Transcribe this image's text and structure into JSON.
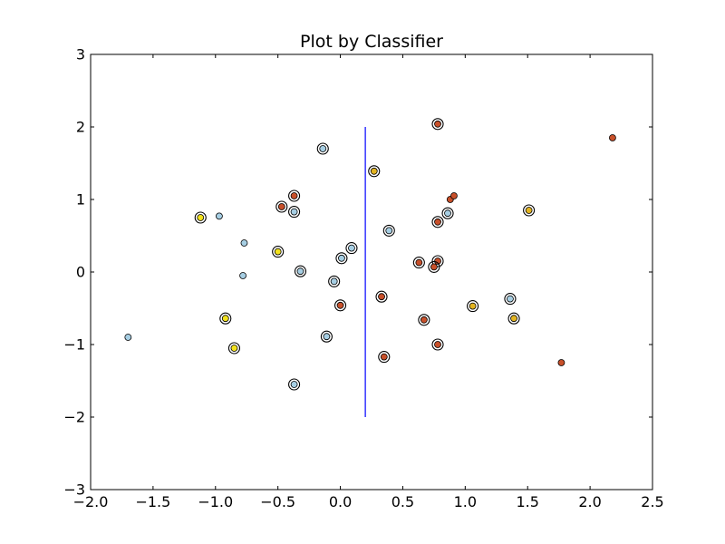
{
  "chart_data": {
    "type": "scatter",
    "title": "Plot by Classifier",
    "xlabel": "",
    "ylabel": "",
    "xlim": [
      -2.0,
      2.5
    ],
    "ylim": [
      -3,
      3
    ],
    "xticks": [
      -2.0,
      -1.5,
      -1.0,
      -0.5,
      0.0,
      0.5,
      1.0,
      1.5,
      2.0,
      2.5
    ],
    "xtick_labels": [
      "−2.0",
      "−1.5",
      "−1.0",
      "−0.5",
      "0.0",
      "0.5",
      "1.0",
      "1.5",
      "2.0",
      "2.5"
    ],
    "yticks": [
      -3,
      -2,
      -1,
      0,
      1,
      2,
      3
    ],
    "ytick_labels": [
      "−3",
      "−2",
      "−1",
      "0",
      "1",
      "2",
      "3"
    ],
    "grid": false,
    "legend": "none",
    "colors": {
      "class_light_blue": "#a6cee3",
      "class_orange_red": "#c8502a",
      "class_yellow": "#f3e21c",
      "class_gold": "#e3b420",
      "divider_line": "#0000ff",
      "ring": "#000000"
    },
    "divider": {
      "x": 0.2,
      "y_from": -2.0,
      "y_to": 2.0
    },
    "points": [
      {
        "x": -1.7,
        "y": -0.9,
        "cls": "light_blue",
        "ring": false
      },
      {
        "x": -0.97,
        "y": 0.77,
        "cls": "light_blue",
        "ring": false
      },
      {
        "x": -0.77,
        "y": 0.4,
        "cls": "light_blue",
        "ring": false
      },
      {
        "x": -0.78,
        "y": -0.05,
        "cls": "light_blue",
        "ring": false
      },
      {
        "x": -0.14,
        "y": 1.7,
        "cls": "light_blue",
        "ring": true
      },
      {
        "x": -0.37,
        "y": 0.83,
        "cls": "light_blue",
        "ring": true
      },
      {
        "x": -0.32,
        "y": 0.01,
        "cls": "light_blue",
        "ring": true
      },
      {
        "x": -0.05,
        "y": -0.13,
        "cls": "light_blue",
        "ring": true
      },
      {
        "x": 0.01,
        "y": 0.19,
        "cls": "light_blue",
        "ring": true
      },
      {
        "x": 0.09,
        "y": 0.33,
        "cls": "light_blue",
        "ring": true
      },
      {
        "x": -0.11,
        "y": -0.89,
        "cls": "light_blue",
        "ring": true
      },
      {
        "x": -0.37,
        "y": -1.55,
        "cls": "light_blue",
        "ring": true
      },
      {
        "x": 0.39,
        "y": 0.57,
        "cls": "light_blue",
        "ring": true
      },
      {
        "x": 0.86,
        "y": 0.81,
        "cls": "light_blue",
        "ring": true
      },
      {
        "x": 1.36,
        "y": -0.37,
        "cls": "light_blue",
        "ring": true
      },
      {
        "x": 0.78,
        "y": 2.04,
        "cls": "orange_red",
        "ring": true
      },
      {
        "x": 2.18,
        "y": 1.85,
        "cls": "orange_red",
        "ring": false
      },
      {
        "x": 0.88,
        "y": 1.0,
        "cls": "orange_red",
        "ring": false
      },
      {
        "x": 0.91,
        "y": 1.05,
        "cls": "orange_red",
        "ring": false
      },
      {
        "x": 0.78,
        "y": 0.69,
        "cls": "orange_red",
        "ring": true
      },
      {
        "x": -0.37,
        "y": 1.05,
        "cls": "orange_red",
        "ring": true
      },
      {
        "x": -0.47,
        "y": 0.9,
        "cls": "orange_red",
        "ring": true
      },
      {
        "x": 0.63,
        "y": 0.13,
        "cls": "orange_red",
        "ring": true
      },
      {
        "x": 0.78,
        "y": 0.15,
        "cls": "orange_red",
        "ring": true
      },
      {
        "x": 0.75,
        "y": 0.07,
        "cls": "orange_red",
        "ring": true
      },
      {
        "x": 0.33,
        "y": -0.34,
        "cls": "orange_red",
        "ring": true
      },
      {
        "x": 0.0,
        "y": -0.46,
        "cls": "orange_red",
        "ring": true
      },
      {
        "x": 0.67,
        "y": -0.66,
        "cls": "orange_red",
        "ring": true
      },
      {
        "x": 0.78,
        "y": -1.0,
        "cls": "orange_red",
        "ring": true
      },
      {
        "x": 0.35,
        "y": -1.17,
        "cls": "orange_red",
        "ring": true
      },
      {
        "x": 1.77,
        "y": -1.25,
        "cls": "orange_red",
        "ring": false
      },
      {
        "x": -1.12,
        "y": 0.75,
        "cls": "yellow",
        "ring": true
      },
      {
        "x": -0.5,
        "y": 0.28,
        "cls": "yellow",
        "ring": true
      },
      {
        "x": -0.92,
        "y": -0.64,
        "cls": "yellow",
        "ring": true
      },
      {
        "x": -0.85,
        "y": -1.05,
        "cls": "yellow",
        "ring": true
      },
      {
        "x": 0.27,
        "y": 1.39,
        "cls": "gold",
        "ring": true
      },
      {
        "x": 1.51,
        "y": 0.85,
        "cls": "gold",
        "ring": true
      },
      {
        "x": 1.06,
        "y": -0.47,
        "cls": "gold",
        "ring": true
      },
      {
        "x": 1.39,
        "y": -0.64,
        "cls": "gold",
        "ring": true
      }
    ]
  }
}
